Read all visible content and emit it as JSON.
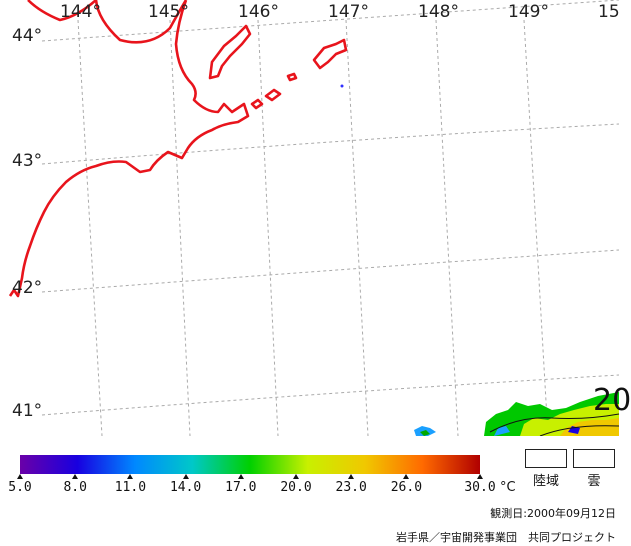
{
  "map": {
    "lon_labels": [
      "144°",
      "145°",
      "146°",
      "147°",
      "148°",
      "149°",
      "15"
    ],
    "lat_labels": [
      "44°",
      "43°",
      "42°",
      "41°"
    ],
    "overlay_value": "20",
    "coastline_color": "#e8141c",
    "grid_color": "#aaaaaa"
  },
  "legend": {
    "title_unit": "°C",
    "ticks": [
      "5.0",
      "8.0",
      "11.0",
      "14.0",
      "17.0",
      "20.0",
      "23.0",
      "26.0",
      "30.0"
    ],
    "colors": [
      "#6a00a8",
      "#1800e0",
      "#0088ff",
      "#00c8c8",
      "#00d000",
      "#c8f000",
      "#f0c800",
      "#ff6a00",
      "#b00000"
    ],
    "land_label": "陸域",
    "cloud_label": "雲"
  },
  "footer": {
    "date_text": "観測日:2000年09月12日",
    "credit_text": "岩手県／宇宙開発事業団　共同プロジェクト"
  }
}
